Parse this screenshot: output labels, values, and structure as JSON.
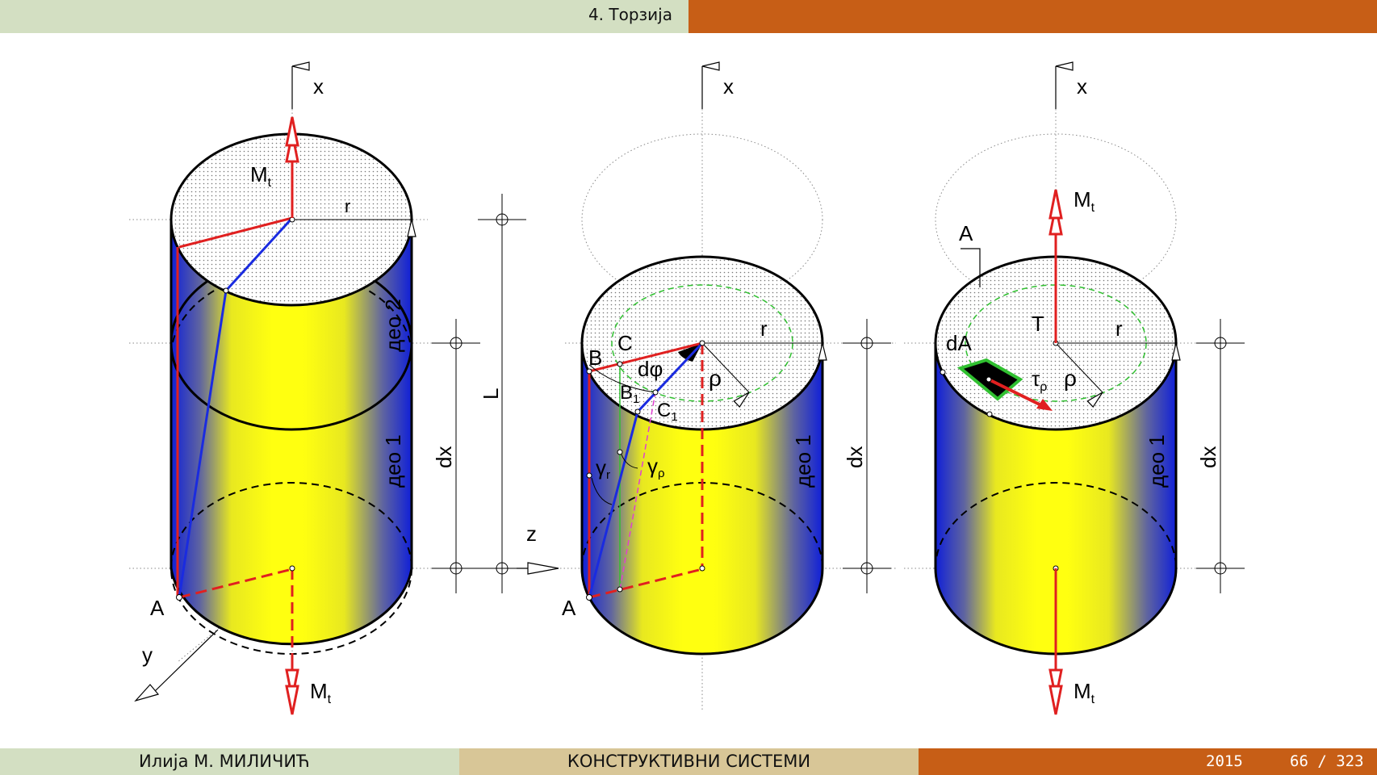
{
  "header": {
    "section": "4. Торзија"
  },
  "footer": {
    "author": "Илија М. МИЛИЧИЋ",
    "course": "КОНСТРУКТИВНИ СИСТЕМИ",
    "year": "2015",
    "page": "66 / 323"
  },
  "colors": {
    "header_green": "#d3dfc2",
    "header_orange": "#c75e16",
    "footer_tan": "#d8c697",
    "cylinder_blue": "#1020d8",
    "cylinder_yellow": "#ffff10",
    "moment_red": "#e02020",
    "generatrix_blue": "#1a2be0",
    "circle_green": "#30c030",
    "gamma_rho_magenta": "#e040d0"
  },
  "figure": {
    "panel1": {
      "axis_x": "x",
      "axis_y": "y",
      "moment": "M",
      "moment_sub": "t",
      "radius": "r",
      "point_a": "A",
      "part2": "део 2",
      "part1": "део 1",
      "dim_dx": "dx",
      "dim_l": "L"
    },
    "panel2": {
      "axis_x": "x",
      "axis_z": "z",
      "radius": "r",
      "rho": "ρ",
      "point_a": "A",
      "point_b": "B",
      "point_c": "C",
      "point_b1": "B",
      "point_c1": "C",
      "sub_1": "1",
      "dphi": "dφ",
      "gamma_r": "γ",
      "sub_r": "r",
      "gamma_rho": "γ",
      "sub_rho": "ρ",
      "part1": "део 1",
      "dim_dx": "dx"
    },
    "panel3": {
      "axis_x": "x",
      "moment": "M",
      "moment_sub": "t",
      "area": "A",
      "dA": "dA",
      "centroid": "T",
      "radius": "r",
      "rho": "ρ",
      "tau": "τ",
      "tau_sub": "ρ",
      "part1": "део 1",
      "dim_dx": "dx"
    }
  }
}
